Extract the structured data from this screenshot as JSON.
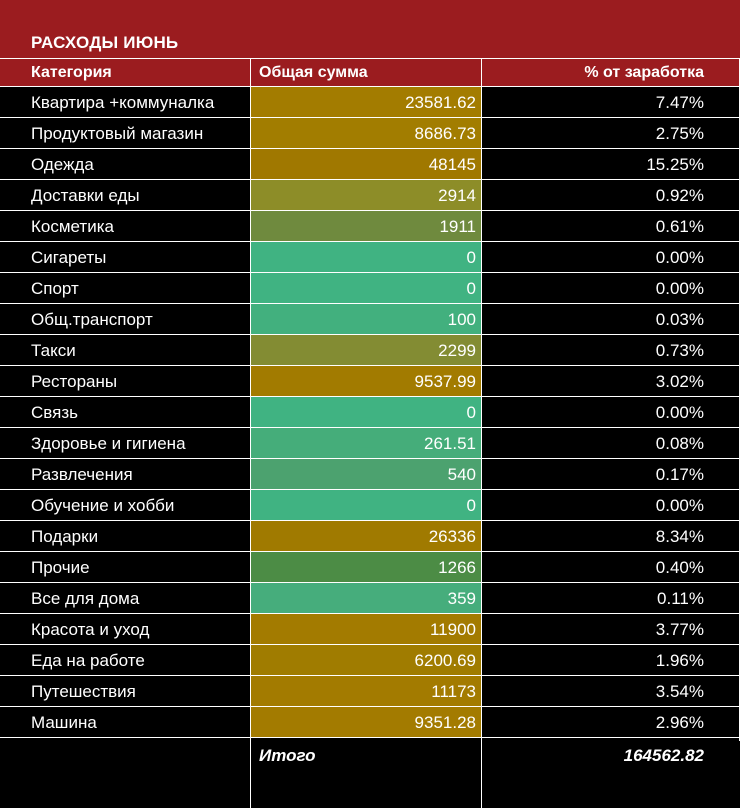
{
  "title": "РАСХОДЫ ИЮНЬ",
  "colors": {
    "header_bg": "#9b1c1f",
    "low": "#41b37f",
    "mid": "#6f8a3a",
    "high": "#a37b00"
  },
  "columns": {
    "category": "Категория",
    "total": "Общая сумма",
    "percent": "% от заработка"
  },
  "rows": [
    {
      "category": "Квартира +коммуналка",
      "total": "23581.62",
      "percent": "7.47%",
      "fill": "#a37c00"
    },
    {
      "category": "Продуктовый магазин",
      "total": "8686.73",
      "percent": "2.75%",
      "fill": "#a27d00"
    },
    {
      "category": "Одежда",
      "total": "48145",
      "percent": "15.25%",
      "fill": "#a07800"
    },
    {
      "category": "Доставки еды",
      "total": "2914",
      "percent": "0.92%",
      "fill": "#8d8d28"
    },
    {
      "category": "Косметика",
      "total": "1911",
      "percent": "0.61%",
      "fill": "#6f8a3e"
    },
    {
      "category": "Сигареты",
      "total": "0",
      "percent": "0.00%",
      "fill": "#40b382"
    },
    {
      "category": "Спорт",
      "total": "0",
      "percent": "0.00%",
      "fill": "#40b382"
    },
    {
      "category": "Общ.транспорт",
      "total": "100",
      "percent": "0.03%",
      "fill": "#42b07e"
    },
    {
      "category": "Такси",
      "total": "2299",
      "percent": "0.73%",
      "fill": "#838c33"
    },
    {
      "category": "Рестораны",
      "total": "9537.99",
      "percent": "3.02%",
      "fill": "#a27b00"
    },
    {
      "category": "Связь",
      "total": "0",
      "percent": "0.00%",
      "fill": "#40b382"
    },
    {
      "category": "Здоровье и гигиена",
      "total": "261.51",
      "percent": "0.08%",
      "fill": "#45ad7a"
    },
    {
      "category": "Развлечения",
      "total": "540",
      "percent": "0.17%",
      "fill": "#4ca26f"
    },
    {
      "category": "Обучение и хобби",
      "total": "0",
      "percent": "0.00%",
      "fill": "#40b382"
    },
    {
      "category": "Подарки",
      "total": "26336",
      "percent": "8.34%",
      "fill": "#a07a00"
    },
    {
      "category": "Прочие",
      "total": "1266",
      "percent": "0.40%",
      "fill": "#4c8c45"
    },
    {
      "category": "Все для дома",
      "total": "359",
      "percent": "0.11%",
      "fill": "#46ad7c"
    },
    {
      "category": "Красота и уход",
      "total": "11900",
      "percent": "3.77%",
      "fill": "#a37b00"
    },
    {
      "category": "Еда на работе",
      "total": "6200.69",
      "percent": "1.96%",
      "fill": "#a07c00"
    },
    {
      "category": "Путешествия",
      "total": "11173",
      "percent": "3.54%",
      "fill": "#a37b00"
    },
    {
      "category": "Машина",
      "total": "9351.28",
      "percent": "2.96%",
      "fill": "#a37b00"
    }
  ],
  "total": {
    "label": "Итого",
    "value": "164562.82"
  }
}
